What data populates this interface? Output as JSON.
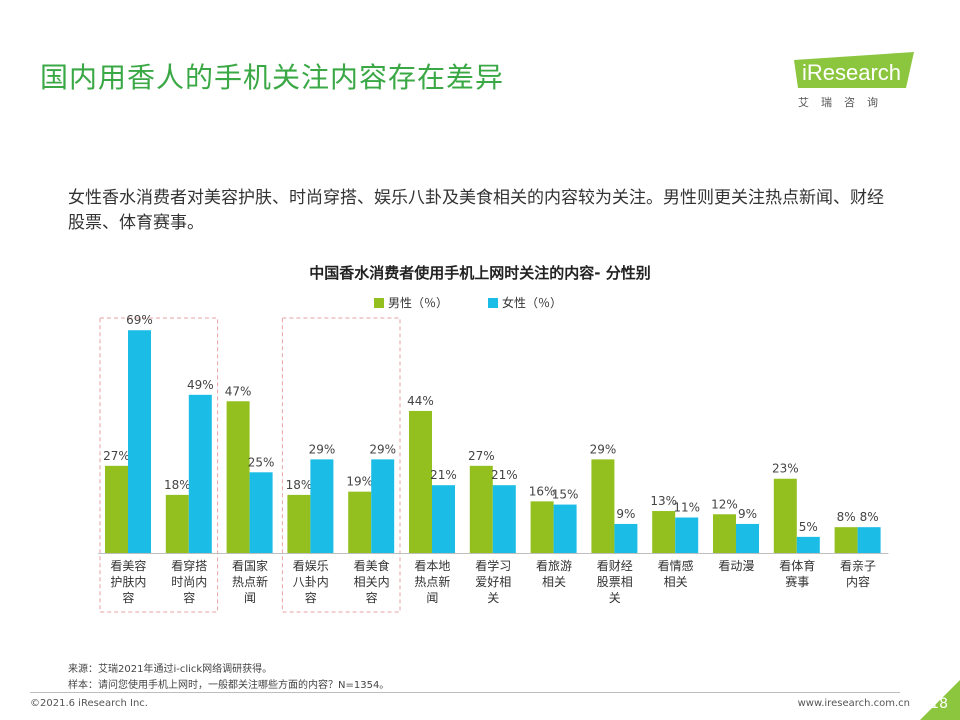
{
  "slide": {
    "title": "国内用香人的手机关注内容存在差异",
    "summary": "女性香水消费者对美容护肤、时尚穿搭、娱乐八卦及美食相关的内容较为关注。男性则更关注热点新闻、财经股票、体育赛事。",
    "logo_text": "iResearch",
    "logo_sub": "艾瑞咨询",
    "source_note": "来源：艾瑞2021年通过i-click网络调研获得。",
    "sample_note": "样本：请问您使用手机上网时，一般都关注哪些方面的内容？N=1354。",
    "copyright": "©2021.6 iResearch Inc.",
    "website": "www.iresearch.com.cn",
    "page_number": "18"
  },
  "chart_data": {
    "type": "bar",
    "title": "中国香水消费者使用手机上网时关注的内容- 分性别",
    "categories": [
      "看美容护肤内容",
      "看穿搭时尚内容",
      "看国家热点新闻",
      "看娱乐八卦内容",
      "看美食相关内容",
      "看本地热点新闻",
      "看学习爱好相关",
      "看旅游相关",
      "看财经股票相关",
      "看情感相关",
      "看动漫",
      "看体育赛事",
      "看亲子内容"
    ],
    "category_lines": [
      [
        "看美容",
        "护肤内",
        "容"
      ],
      [
        "看穿搭",
        "时尚内",
        "容"
      ],
      [
        "看国家",
        "热点新",
        "闻"
      ],
      [
        "看娱乐",
        "八卦内",
        "容"
      ],
      [
        "看美食",
        "相关内",
        "容"
      ],
      [
        "看本地",
        "热点新",
        "闻"
      ],
      [
        "看学习",
        "爱好相",
        "关"
      ],
      [
        "看旅游",
        "相关"
      ],
      [
        "看财经",
        "股票相",
        "关"
      ],
      [
        "看情感",
        "相关"
      ],
      [
        "看动漫"
      ],
      [
        "看体育",
        "赛事"
      ],
      [
        "看亲子",
        "内容"
      ]
    ],
    "series": [
      {
        "name": "男性（％）",
        "color": "#93c01f",
        "values": [
          27,
          18,
          47,
          18,
          19,
          44,
          27,
          16,
          29,
          13,
          12,
          23,
          8
        ]
      },
      {
        "name": "女性（％）",
        "color": "#1bbde6",
        "values": [
          69,
          49,
          25,
          29,
          29,
          21,
          21,
          15,
          9,
          11,
          9,
          5,
          8
        ]
      }
    ],
    "value_suffix": "%",
    "ylim": [
      0,
      70
    ],
    "highlight_groups": [
      [
        0,
        1
      ],
      [
        3,
        4
      ]
    ],
    "highlight_color": "#e8a3a3",
    "legend_position": "top-center",
    "grid": false
  }
}
